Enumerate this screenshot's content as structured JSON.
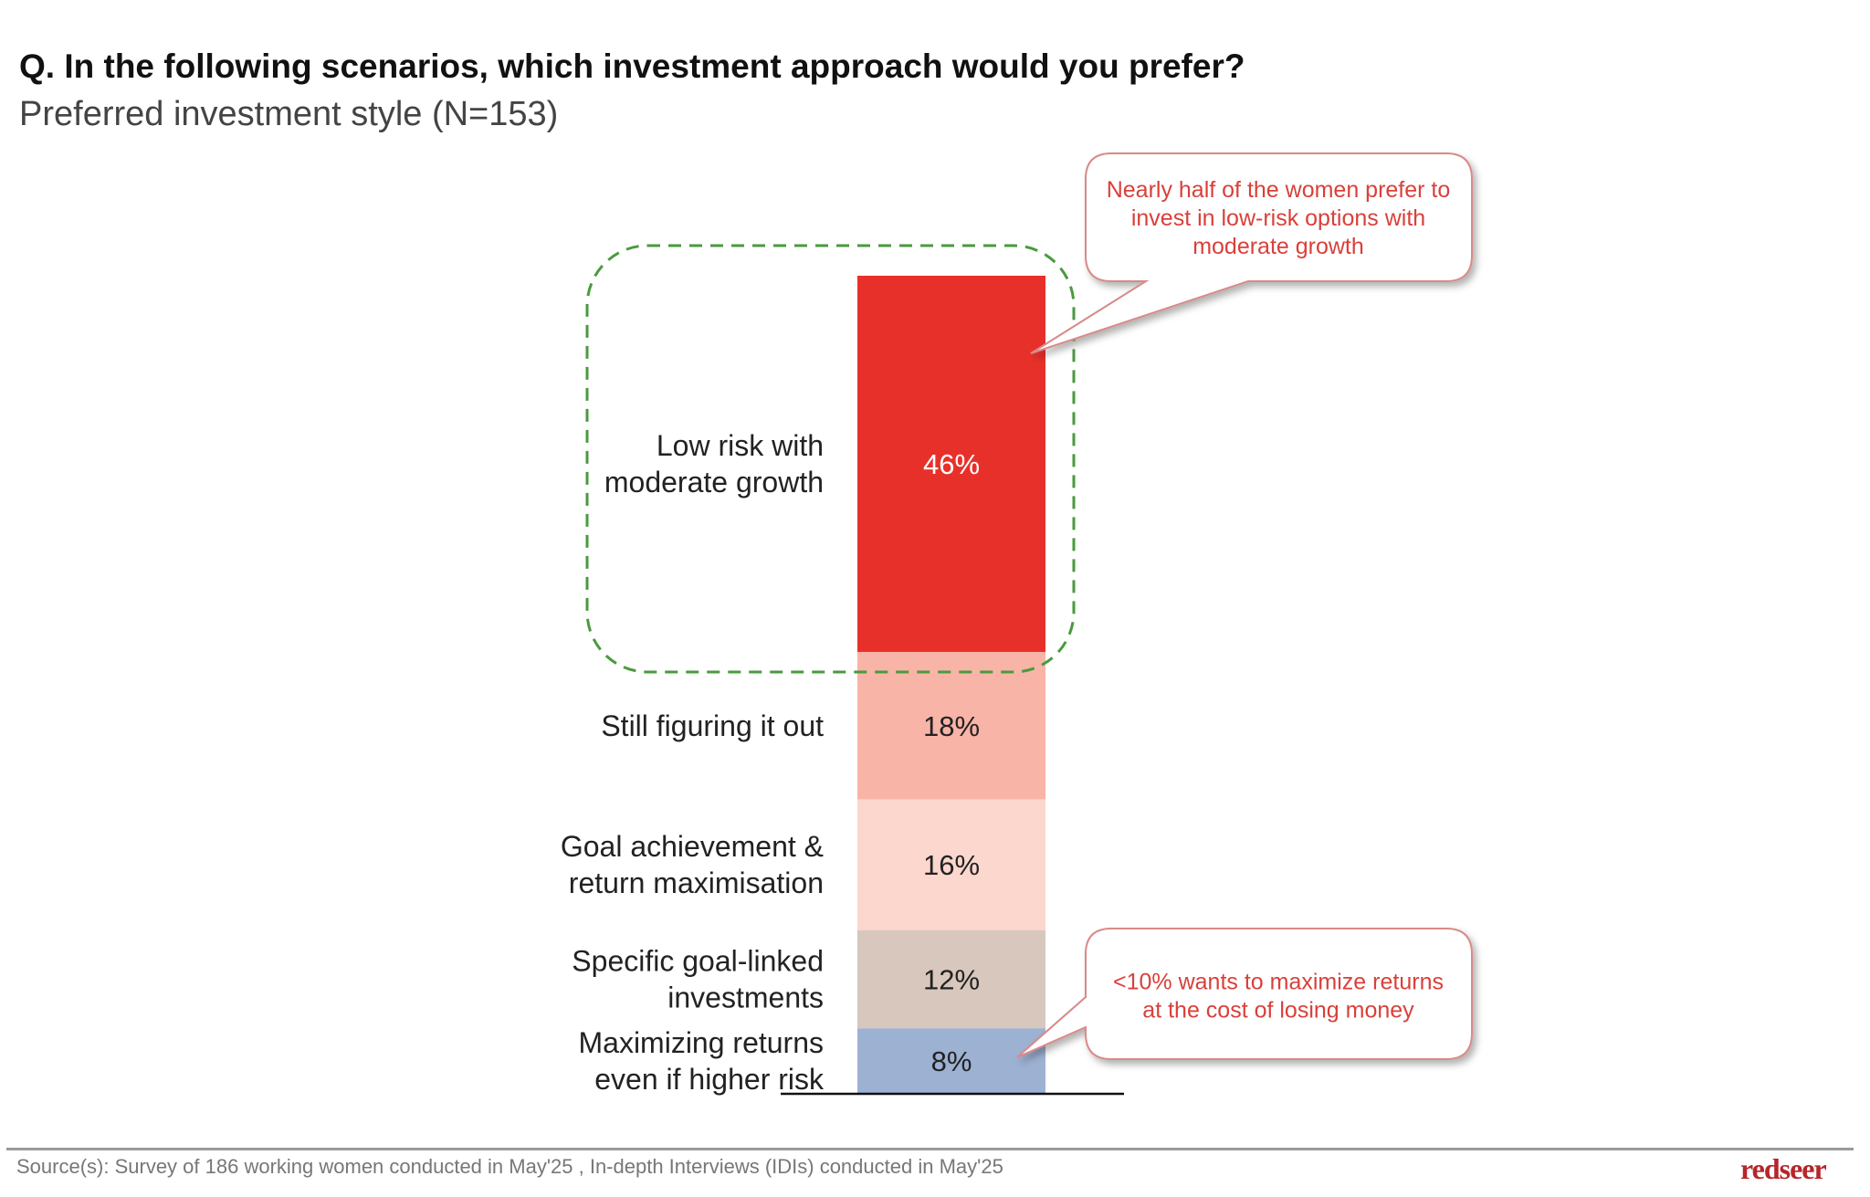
{
  "header": {
    "title": "Q. In the following scenarios, which investment approach would you prefer?",
    "subtitle": "Preferred investment style (N=153)"
  },
  "chart_data": {
    "type": "bar",
    "stacked": true,
    "orientation": "vertical-100%-stacked",
    "categories": [
      "Low risk with moderate growth",
      "Still figuring it out",
      "Goal achievement & return maximisation",
      "Specific goal-linked investments",
      "Maximizing returns even if higher risk"
    ],
    "label_lines": [
      [
        "Low risk with",
        "moderate growth"
      ],
      [
        "Still figuring it out"
      ],
      [
        "Goal achievement &",
        "return maximisation"
      ],
      [
        "Specific goal-linked",
        "investments"
      ],
      [
        "Maximizing returns",
        "even if higher risk"
      ]
    ],
    "values": [
      46,
      18,
      16,
      12,
      8
    ],
    "value_labels": [
      "46%",
      "18%",
      "16%",
      "12%",
      "8%"
    ],
    "colors": [
      "#E8302A",
      "#F8B4A7",
      "#FBD7CD",
      "#D7C7BD",
      "#9DB1D2"
    ],
    "label_colors": [
      "#ffffff",
      "#222222",
      "#222222",
      "#222222",
      "#222222"
    ],
    "ylim": [
      0,
      100
    ],
    "highlight": "Low risk with moderate growth",
    "annotations": [
      {
        "lines": [
          "Nearly half of the women prefer to",
          "invest in low-risk options with",
          "moderate growth"
        ]
      },
      {
        "lines": [
          "<10% wants to maximize returns",
          "at the cost of losing money"
        ]
      }
    ]
  },
  "footer": {
    "source": "Source(s): Survey of 186 working women conducted in May'25 , In-depth Interviews (IDIs) conducted in May'25",
    "logo": "redseer"
  }
}
